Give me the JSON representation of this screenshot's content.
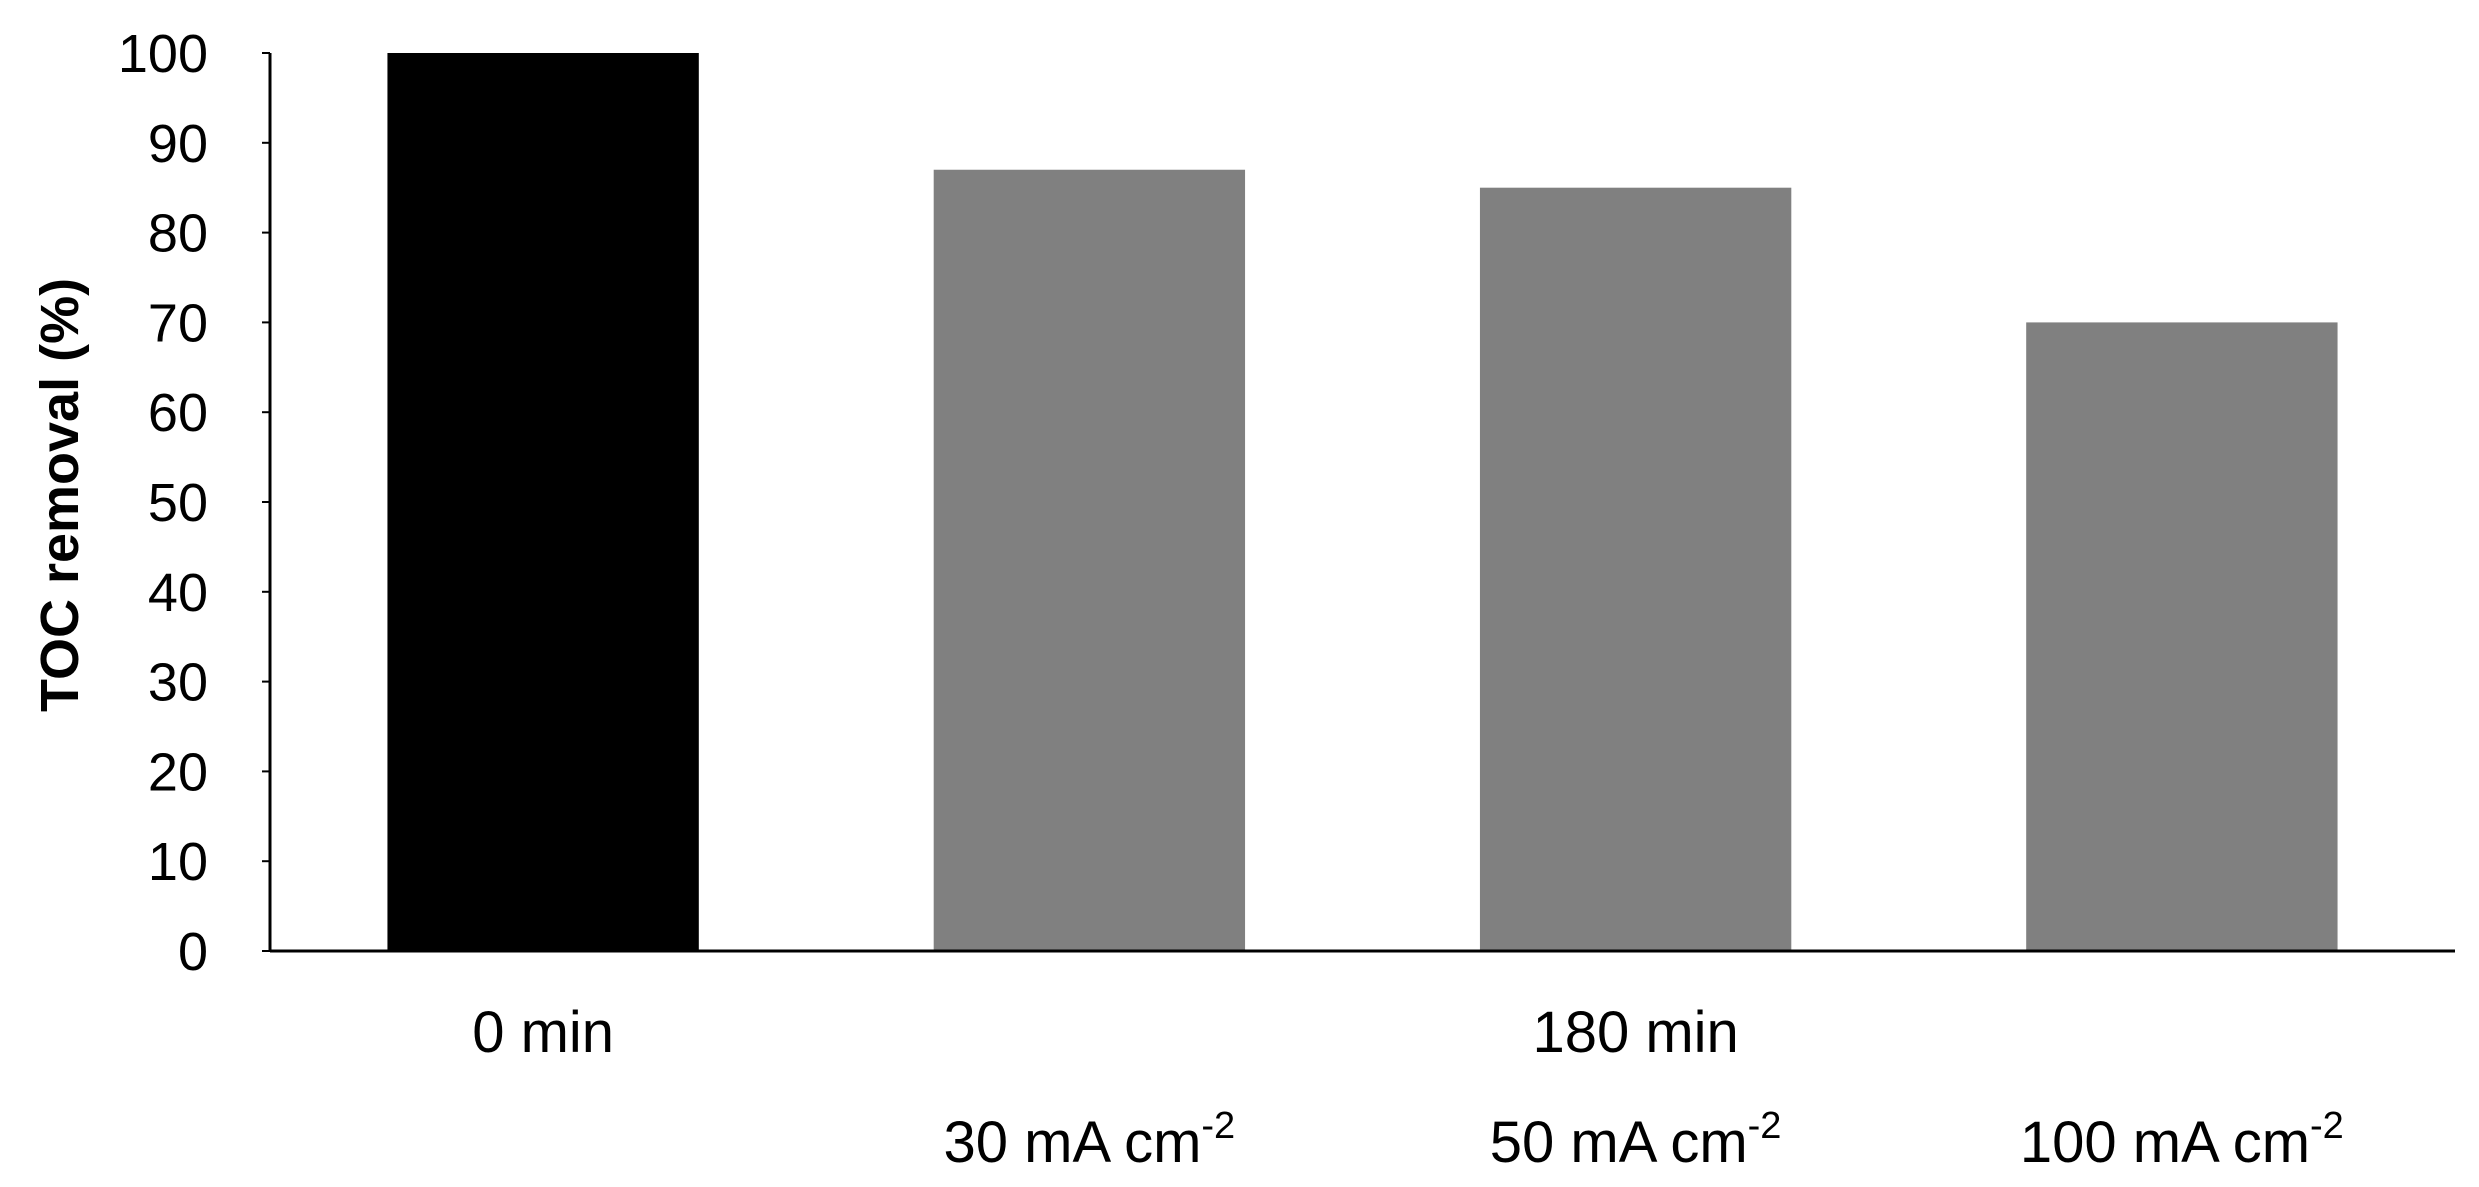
{
  "chart_data": {
    "type": "bar",
    "ylabel": "TOC removal (%)",
    "ylim": [
      0,
      100
    ],
    "yticks": [
      0,
      10,
      20,
      30,
      40,
      50,
      60,
      70,
      80,
      90,
      100
    ],
    "grid": false,
    "categories": [
      {
        "time": "0 min",
        "current": "",
        "value": 100,
        "color": "#000000"
      },
      {
        "time": "",
        "current": "30 mA cm",
        "current_sup": "-2",
        "value": 87,
        "color": "#808080"
      },
      {
        "time": "",
        "current": "50 mA cm",
        "current_sup": "-2",
        "value": 85,
        "color": "#808080"
      },
      {
        "time": "",
        "current": "100 mA cm",
        "current_sup": "-2",
        "value": 70,
        "color": "#808080"
      }
    ],
    "group_labels": [
      {
        "label": "0 min",
        "span": [
          0,
          0
        ]
      },
      {
        "label": "180 min",
        "span": [
          1,
          3
        ]
      }
    ]
  }
}
